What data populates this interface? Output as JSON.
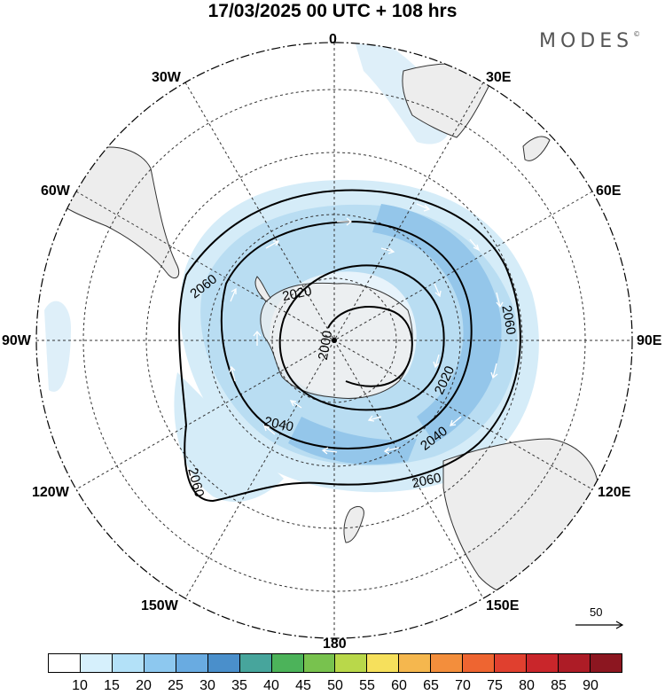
{
  "title": "17/03/2025  00 UTC  + 108 hrs",
  "brand": {
    "name": "MODES",
    "mark": "©"
  },
  "longitude_labels": {
    "top": "0",
    "bottom": "180",
    "left": "90W",
    "right": "90E",
    "upper_left_30": "30W",
    "upper_right_30": "30E",
    "left_60": "60W",
    "right_60": "60E",
    "lower_left_120": "120W",
    "lower_right_120": "120E",
    "lower_left_150": "150W",
    "lower_right_150": "150E"
  },
  "contour_labels": [
    "2000",
    "2020",
    "2040",
    "2060",
    "2060",
    "2060",
    "2060",
    "2040",
    "2020"
  ],
  "wind_reference": {
    "value": "50"
  },
  "colorbar": {
    "colors": [
      "#ffffff",
      "#d6f0fc",
      "#b3e1f8",
      "#8dc8ef",
      "#69abe1",
      "#4a8fcb",
      "#47a59c",
      "#4cb35a",
      "#78c24e",
      "#b9d84a",
      "#f6e05c",
      "#f5b74e",
      "#f38e3c",
      "#ee6531",
      "#e0402f",
      "#c9262b",
      "#ad1c26",
      "#8c1620"
    ],
    "labels": [
      "10",
      "15",
      "20",
      "25",
      "30",
      "35",
      "40",
      "45",
      "50",
      "55",
      "60",
      "65",
      "70",
      "75",
      "80",
      "85",
      "90"
    ]
  },
  "colors": {
    "wind_light": "#d5ecf8",
    "wind_mid": "#b3dcf2",
    "wind_strong": "#93c7ec",
    "land": "#ededed"
  }
}
